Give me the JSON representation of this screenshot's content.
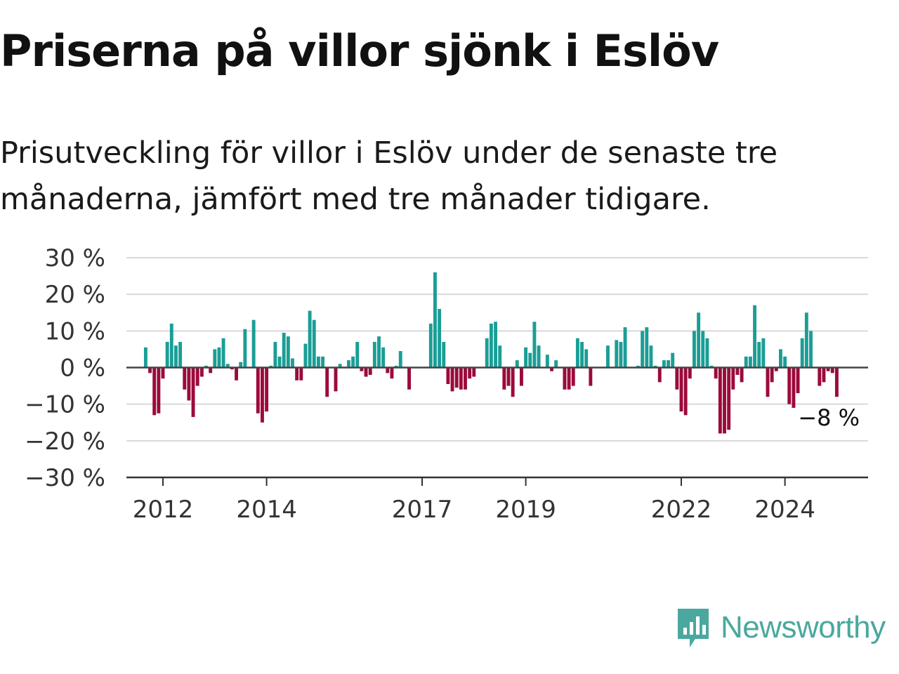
{
  "title": "Priserna på villor sjönk i Eslöv",
  "subtitle": "Prisutveckling för villor i Eslöv under de senaste tre månaderna, jämfört med tre månader tidigare.",
  "brand": {
    "name": "Newsworthy",
    "logo_icon": "bar-chart-speech-bubble-icon"
  },
  "colors": {
    "positive": "#1a9e96",
    "negative": "#9c0a3a",
    "grid": "#d9d9d9",
    "axis": "#333333",
    "brand": "#4aa89e"
  },
  "chart_data": {
    "type": "bar",
    "ylim": [
      -30,
      30
    ],
    "yticks": [
      30,
      20,
      10,
      0,
      -10,
      -20,
      -30
    ],
    "ytick_labels": [
      "30 %",
      "20 %",
      "10 %",
      "0 %",
      "−10 %",
      "−20 %",
      "−30 %"
    ],
    "grid": true,
    "x_start": "2011-09",
    "x_ticks": [
      {
        "label": "2012",
        "date": "2012-01"
      },
      {
        "label": "2014",
        "date": "2014-01"
      },
      {
        "label": "2017",
        "date": "2017-01"
      },
      {
        "label": "2019",
        "date": "2019-01"
      },
      {
        "label": "2022",
        "date": "2022-01"
      },
      {
        "label": "2024",
        "date": "2024-01"
      }
    ],
    "last_value_label": "−8 %",
    "values": [
      5.5,
      -1.5,
      -13,
      -12.5,
      -3,
      7,
      12,
      6,
      7,
      -6,
      -9,
      -13.5,
      -5,
      -2.5,
      0.5,
      -1.5,
      5,
      5.5,
      8,
      1,
      -0.5,
      -3.5,
      1.5,
      10.5,
      0,
      13,
      -12.5,
      -15,
      -12,
      0.5,
      7,
      3,
      9.5,
      8.5,
      2.5,
      -3.5,
      -3.5,
      6.5,
      15.5,
      13,
      3,
      3,
      -8,
      0,
      -6.5,
      1,
      0,
      2,
      3,
      7,
      -1,
      -2.5,
      -2,
      7,
      8.5,
      5.5,
      -1.5,
      -3,
      0.5,
      4.5,
      0,
      -6,
      0,
      0,
      0,
      0,
      12,
      26,
      16,
      7,
      -4.5,
      -6.5,
      -5.5,
      -6,
      -6,
      -3,
      -2.5,
      0,
      0,
      8,
      12,
      12.5,
      6,
      -6,
      -5,
      -8,
      2,
      -5,
      5.5,
      4,
      12.5,
      6,
      0,
      3.5,
      -1,
      2,
      0,
      -6,
      -6,
      -5,
      8,
      7,
      5,
      -5,
      0,
      0,
      0,
      6,
      0,
      7.5,
      7,
      11,
      0,
      0,
      0.5,
      10,
      11,
      6,
      0.5,
      -4,
      2,
      2,
      4,
      -6,
      -12,
      -13,
      -3,
      10,
      15,
      10,
      8,
      0.5,
      -3,
      -18,
      -18,
      -17,
      -6,
      -2,
      -4,
      3,
      3,
      17,
      7,
      8,
      -8,
      -4,
      -1,
      5,
      3,
      -10,
      -11,
      -7,
      8,
      15,
      10,
      0,
      -5,
      -4,
      -1,
      -1.5,
      -8
    ]
  }
}
